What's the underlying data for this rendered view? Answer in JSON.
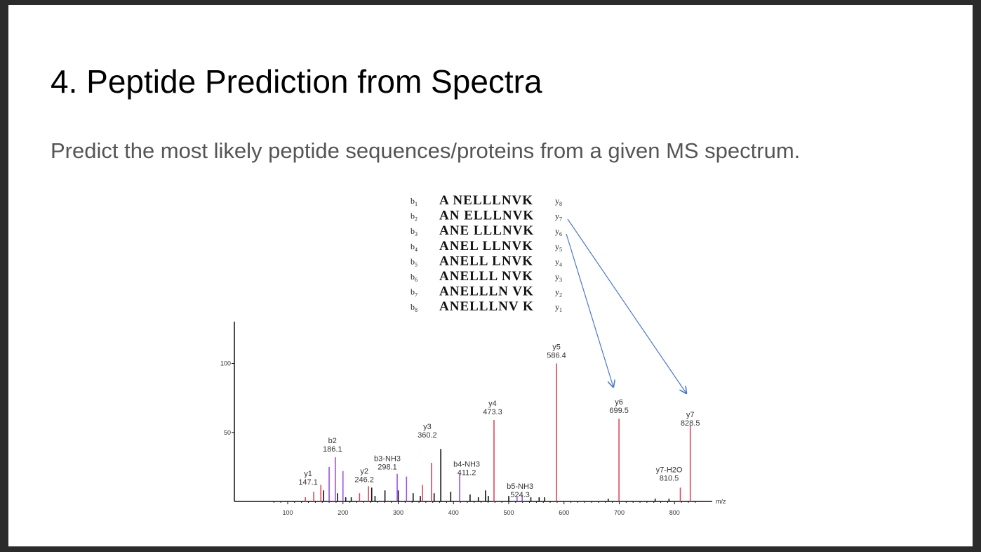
{
  "slide": {
    "title": "4. Peptide Prediction from Spectra",
    "subtitle": "Predict the most likely peptide sequences/proteins from a given MS spectrum."
  },
  "fragment_table": {
    "rows": [
      {
        "b": "1",
        "seq": "A NELLLNVK",
        "y": "8"
      },
      {
        "b": "2",
        "seq": "AN ELLLNVK",
        "y": "7"
      },
      {
        "b": "3",
        "seq": "ANE LLLNVK",
        "y": "6"
      },
      {
        "b": "4",
        "seq": "ANEL LLNVK",
        "y": "5"
      },
      {
        "b": "5",
        "seq": "ANELL LNVK",
        "y": "4"
      },
      {
        "b": "6",
        "seq": "ANELLL NVK",
        "y": "3"
      },
      {
        "b": "7",
        "seq": "ANELLLN VK",
        "y": "2"
      },
      {
        "b": "8",
        "seq": "ANELLLNV K",
        "y": "1"
      }
    ]
  },
  "chart_data": {
    "type": "bar",
    "x_unit": "m/z",
    "xlim": [
      72,
      845
    ],
    "ylim": [
      0,
      128
    ],
    "xticks": [
      100,
      200,
      300,
      400,
      500,
      600,
      700,
      800
    ],
    "yticks": [
      50,
      100
    ],
    "colors": {
      "y_ion": "#e0475a",
      "b_ion": "#9b4fe6",
      "other": "#111111",
      "arrow": "#4a78c8"
    },
    "labeled_peaks": [
      {
        "name": "y1",
        "value": "147.1",
        "mz": 147.1,
        "intensity": 7,
        "kind": "y_ion"
      },
      {
        "name": "b2",
        "value": "186.1",
        "mz": 186.1,
        "intensity": 32,
        "kind": "b_ion"
      },
      {
        "name": "y2",
        "value": "246.2",
        "mz": 246.2,
        "intensity": 11,
        "kind": "y_ion"
      },
      {
        "name": "b3-NH3",
        "value": "298.1",
        "mz": 298.1,
        "intensity": 20,
        "kind": "b_ion"
      },
      {
        "name": "y3",
        "value": "360.2",
        "mz": 360.2,
        "intensity": 28,
        "kind": "y_ion"
      },
      {
        "name": "b4-NH3",
        "value": "411.2",
        "mz": 411.2,
        "intensity": 20,
        "kind": "b_ion"
      },
      {
        "name": "y4",
        "value": "473.3",
        "mz": 473.3,
        "intensity": 59,
        "kind": "y_ion"
      },
      {
        "name": "b5-NH3",
        "value": "524.3",
        "mz": 524.3,
        "intensity": 4,
        "kind": "b_ion"
      },
      {
        "name": "y5",
        "value": "586.4",
        "mz": 586.4,
        "intensity": 100,
        "kind": "y_ion"
      },
      {
        "name": "y6",
        "value": "699.5",
        "mz": 699.5,
        "intensity": 60,
        "kind": "y_ion"
      },
      {
        "name": "y7-H2O",
        "value": "810.5",
        "mz": 810.5,
        "intensity": 10,
        "kind": "y_ion"
      },
      {
        "name": "y7",
        "value": "828.5",
        "mz": 828.5,
        "intensity": 55,
        "kind": "y_ion"
      }
    ],
    "minor_peaks": [
      {
        "mz": 132,
        "intensity": 3,
        "kind": "y_ion"
      },
      {
        "mz": 160,
        "intensity": 12,
        "kind": "y_ion"
      },
      {
        "mz": 165,
        "intensity": 8,
        "kind": "other"
      },
      {
        "mz": 175,
        "intensity": 25,
        "kind": "b_ion"
      },
      {
        "mz": 190,
        "intensity": 6,
        "kind": "other"
      },
      {
        "mz": 200,
        "intensity": 22,
        "kind": "b_ion"
      },
      {
        "mz": 205,
        "intensity": 3,
        "kind": "other"
      },
      {
        "mz": 215,
        "intensity": 3,
        "kind": "other"
      },
      {
        "mz": 230,
        "intensity": 6,
        "kind": "y_ion"
      },
      {
        "mz": 252,
        "intensity": 10,
        "kind": "other"
      },
      {
        "mz": 258,
        "intensity": 4,
        "kind": "other"
      },
      {
        "mz": 276,
        "intensity": 8,
        "kind": "other"
      },
      {
        "mz": 300,
        "intensity": 8,
        "kind": "other"
      },
      {
        "mz": 315,
        "intensity": 18,
        "kind": "b_ion"
      },
      {
        "mz": 327,
        "intensity": 6,
        "kind": "other"
      },
      {
        "mz": 340,
        "intensity": 4,
        "kind": "other"
      },
      {
        "mz": 344,
        "intensity": 12,
        "kind": "y_ion"
      },
      {
        "mz": 365,
        "intensity": 6,
        "kind": "other"
      },
      {
        "mz": 377,
        "intensity": 38,
        "kind": "other"
      },
      {
        "mz": 395,
        "intensity": 7,
        "kind": "other"
      },
      {
        "mz": 430,
        "intensity": 5,
        "kind": "other"
      },
      {
        "mz": 445,
        "intensity": 3,
        "kind": "other"
      },
      {
        "mz": 458,
        "intensity": 8,
        "kind": "other"
      },
      {
        "mz": 463,
        "intensity": 4,
        "kind": "other"
      },
      {
        "mz": 500,
        "intensity": 4,
        "kind": "other"
      },
      {
        "mz": 515,
        "intensity": 3,
        "kind": "b_ion"
      },
      {
        "mz": 540,
        "intensity": 3,
        "kind": "other"
      },
      {
        "mz": 555,
        "intensity": 3,
        "kind": "other"
      },
      {
        "mz": 565,
        "intensity": 3,
        "kind": "other"
      },
      {
        "mz": 680,
        "intensity": 2,
        "kind": "other"
      },
      {
        "mz": 765,
        "intensity": 2,
        "kind": "other"
      },
      {
        "mz": 790,
        "intensity": 2,
        "kind": "other"
      }
    ]
  }
}
